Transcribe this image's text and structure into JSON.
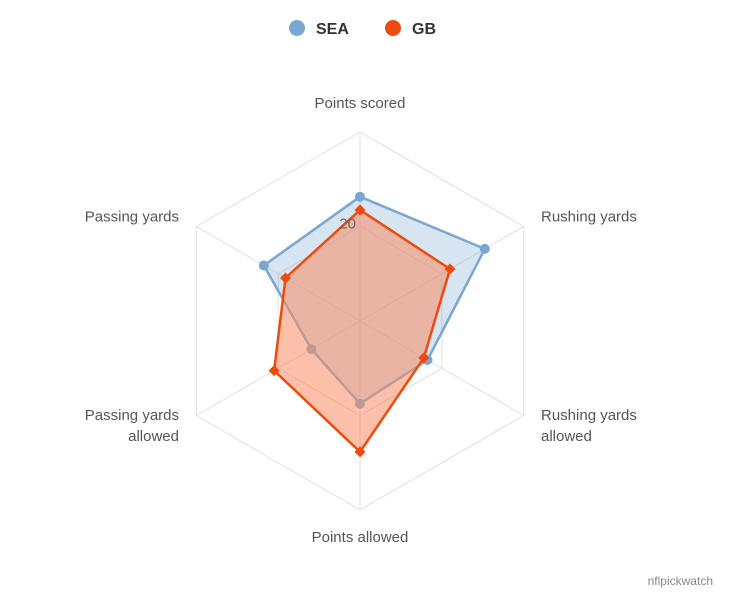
{
  "chart_data": {
    "type": "radar",
    "axes": [
      "Points scored",
      "Rushing yards",
      "Rushing yards allowed",
      "Points allowed",
      "Passing yards allowed",
      "Passing yards"
    ],
    "axis_labels": [
      [
        "Points scored"
      ],
      [
        "Rushing yards"
      ],
      [
        "Rushing yards",
        "allowed"
      ],
      [
        "Points allowed"
      ],
      [
        "Passing yards",
        "allowed"
      ],
      [
        "Passing yards"
      ]
    ],
    "series": [
      {
        "name": "SEA",
        "values": [
          26.3,
          30.5,
          16.5,
          17.5,
          11.9,
          23.5
        ],
        "color": "#7aa7d1",
        "fill": "rgba(122,167,209,0.30)",
        "marker": "circle"
      },
      {
        "name": "GB",
        "values": [
          23.5,
          22.0,
          15.6,
          27.7,
          21.0,
          18.2
        ],
        "color": "#ee4a0c",
        "fill": "rgba(250,140,100,0.55)",
        "marker": "diamond"
      }
    ],
    "radial_max": 40,
    "ticks": [
      20
    ],
    "tick_labels": [
      "20"
    ],
    "grid": true,
    "legend_position": "top-center"
  },
  "credit": "nflpickwatch"
}
